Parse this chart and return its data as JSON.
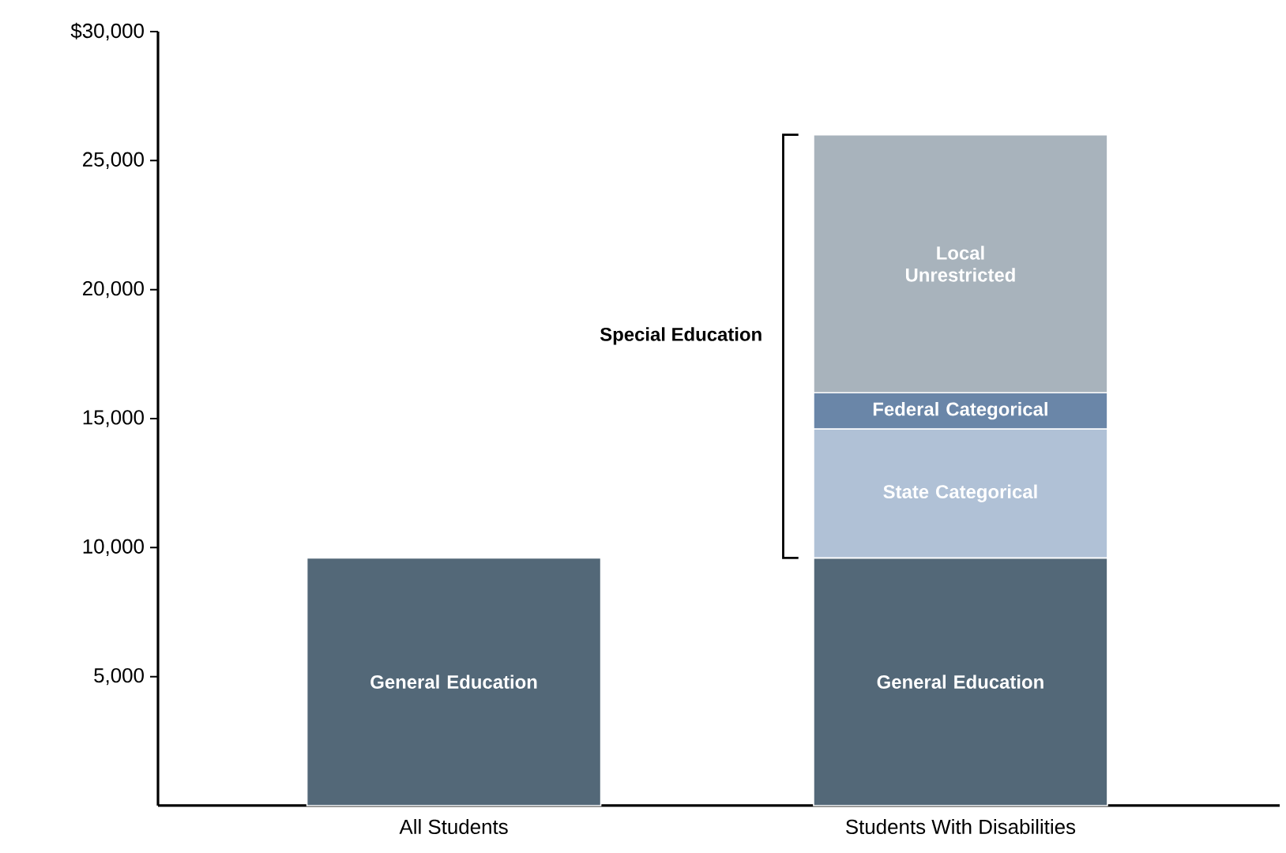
{
  "chart_data": {
    "type": "bar",
    "stacked": true,
    "categories": [
      "All Students",
      "Students With Disabilities"
    ],
    "series": [
      {
        "name": "General Education",
        "color": "#536878",
        "values": [
          9600,
          9600
        ]
      },
      {
        "name": "State Categorical",
        "color": "#b0c1d6",
        "values": [
          null,
          5000
        ]
      },
      {
        "name": "Federal Categorical",
        "color": "#6a86a8",
        "values": [
          null,
          1400
        ]
      },
      {
        "name": "Local Unrestricted",
        "color": "#a8b3bc",
        "values": [
          null,
          10000
        ]
      }
    ],
    "ylim": [
      0,
      30000
    ],
    "yticks": [
      {
        "value": 5000,
        "label": "5,000"
      },
      {
        "value": 10000,
        "label": "10,000"
      },
      {
        "value": 15000,
        "label": "15,000"
      },
      {
        "value": 20000,
        "label": "20,000"
      },
      {
        "value": 25000,
        "label": "25,000"
      },
      {
        "value": 30000,
        "label": "$30,000"
      }
    ],
    "grid": false,
    "legend": false,
    "annotations": [
      "Special Education"
    ]
  }
}
